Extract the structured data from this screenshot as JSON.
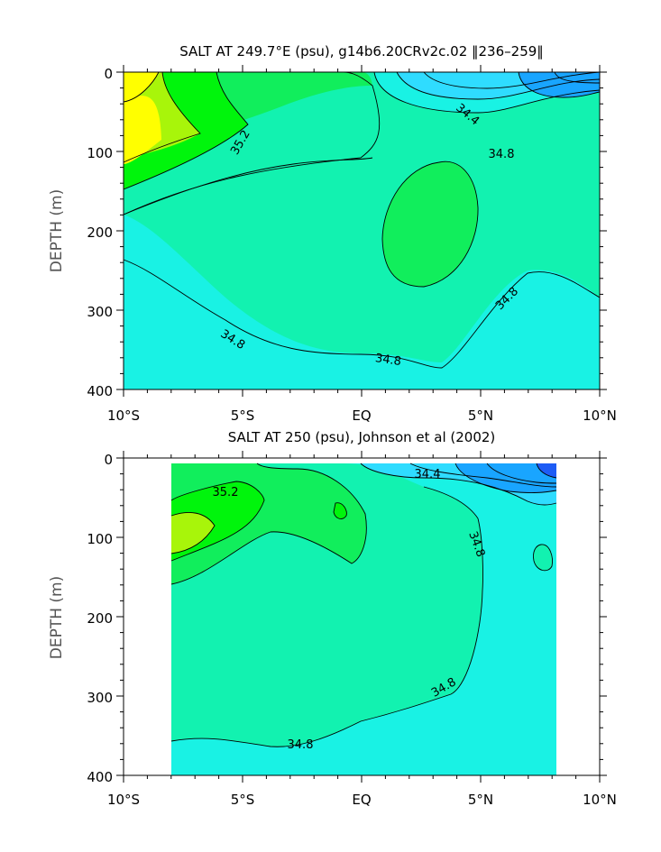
{
  "chart_data": [
    {
      "type": "contour",
      "title": "SALT AT 249.7°E (psu), g14b6.20CRv2c.02 ‖236–259‖",
      "xlabel": "",
      "ylabel": "DEPTH (m)",
      "x_tick_labels": [
        "10°S",
        "5°S",
        "EQ",
        "5°N",
        "10°N"
      ],
      "x_ticks": [
        -10,
        -5,
        0,
        5,
        10
      ],
      "y_tick_labels": [
        "0",
        "100",
        "200",
        "300",
        "400"
      ],
      "y_ticks": [
        0,
        100,
        200,
        300,
        400
      ],
      "xlim": [
        -10,
        10
      ],
      "ylim": [
        400,
        0
      ],
      "contour_labels": [
        "34.4",
        "35.2",
        "34.8",
        "34.8",
        "34.8",
        "34.8"
      ]
    },
    {
      "type": "contour",
      "title": "SALT AT 250 (psu), Johnson et al (2002)",
      "xlabel": "",
      "ylabel": "DEPTH (m)",
      "x_tick_labels": [
        "10°S",
        "5°S",
        "EQ",
        "5°N",
        "10°N"
      ],
      "x_ticks": [
        -10,
        -5,
        0,
        5,
        10
      ],
      "y_tick_labels": [
        "0",
        "100",
        "200",
        "300",
        "400"
      ],
      "y_ticks": [
        0,
        100,
        200,
        300,
        400
      ],
      "xlim": [
        -10,
        10
      ],
      "ylim": [
        400,
        0
      ],
      "data_extent_lon": [
        -8,
        8.2
      ],
      "contour_labels": [
        "35.2",
        "34.4",
        "34.8",
        "34.8",
        "34.8"
      ]
    }
  ],
  "colors": {
    "fresh_blue": "#1e5cf5",
    "blue": "#19a5ff",
    "light_blue": "#2fdcff",
    "cyan": "#19f2e4",
    "aqua_green": "#12f2b0",
    "green": "#11ee5c",
    "bright_green": "#00f50c",
    "lime": "#a8f50a",
    "yellow": "#ffff00"
  }
}
